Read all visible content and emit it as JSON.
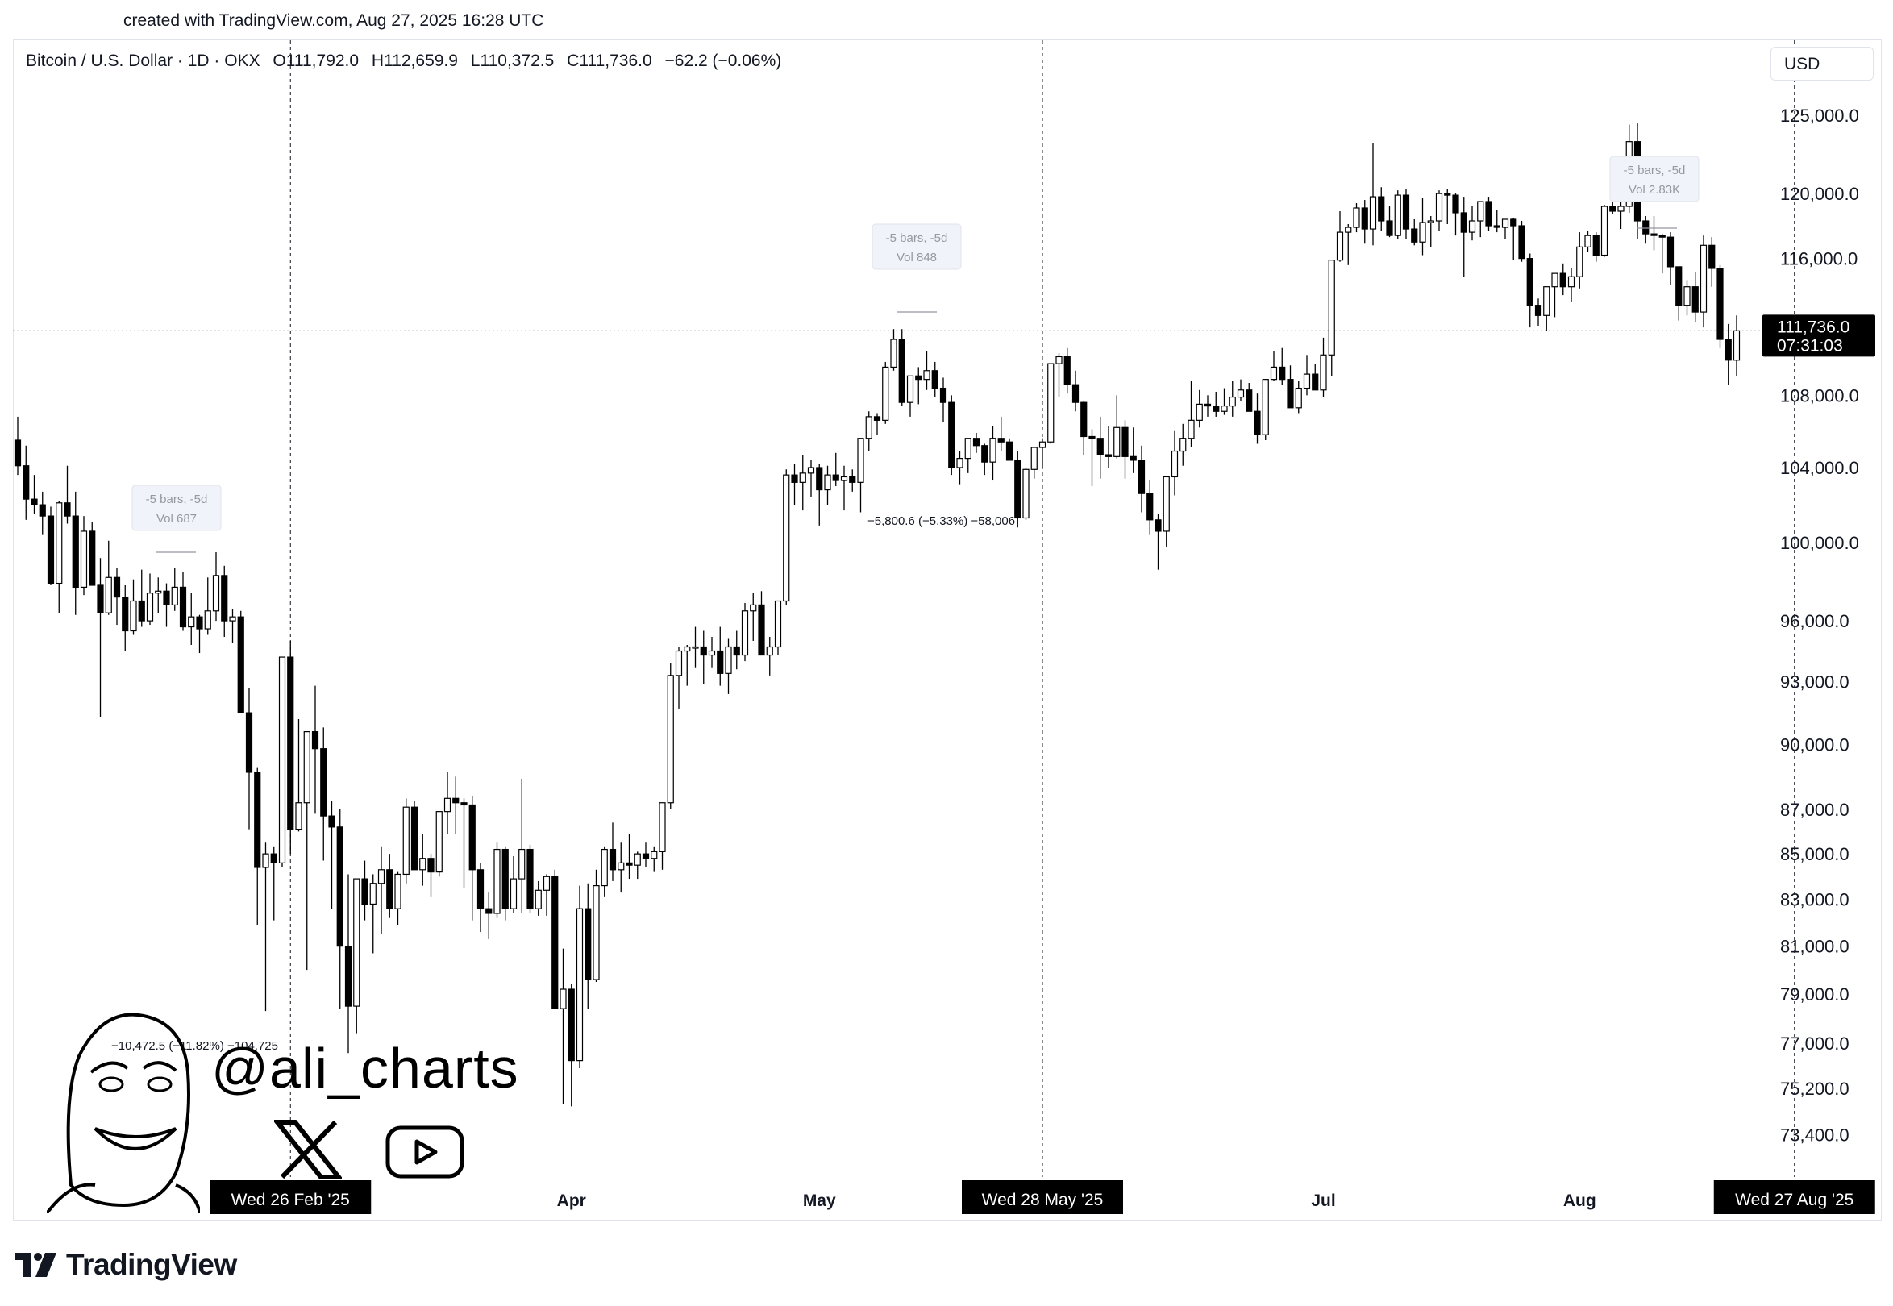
{
  "header": {
    "credit": "created with TradingView.com, Aug 27, 2025 16:28 UTC"
  },
  "legend": {
    "symbol": "Bitcoin / U.S. Dollar · 1D · OKX",
    "open": "O111,792.0",
    "high": "H112,659.9",
    "low": "L110,372.5",
    "close": "C111,736.0",
    "change": "−62.2 (−0.06%)"
  },
  "currency": "USD",
  "colors": {
    "up": "#ffffff",
    "down": "#000000",
    "outline": "#000000",
    "grid": "#e0e3eb",
    "label_bg": "#000000"
  },
  "chart_data": {
    "type": "candlestick",
    "symbol": "BTC/USD",
    "interval": "1D",
    "exchange": "OKX",
    "ylim": [
      71800,
      130000
    ],
    "price_axis_labels": [
      125000,
      120000,
      116000,
      108000,
      104000,
      100000,
      96000,
      93000,
      90000,
      87000,
      85000,
      83000,
      81000,
      79000,
      77000,
      75200,
      73400
    ],
    "price_axis_text": [
      "125,000.0",
      "120,000.0",
      "116,000.0",
      "108,000.0",
      "104,000.0",
      "100,000.0",
      "96,000.0",
      "93,000.0",
      "90,000.0",
      "87,000.0",
      "85,000.0",
      "83,000.0",
      "81,000.0",
      "79,000.0",
      "77,000.0",
      "75,200.0",
      "73,400.0"
    ],
    "time_axis_labels": [
      "Apr",
      "May",
      "Jul",
      "Aug"
    ],
    "time_axis_label_dates": [
      "2025-04-01",
      "2025-05-01",
      "2025-07-01",
      "2025-08-01"
    ],
    "date_range": [
      "2025-01-24",
      "2025-08-27"
    ],
    "current_price": "111,736.0",
    "countdown": "07:31:03",
    "highlighted_dates": [
      {
        "date": "2025-02-26",
        "label": "Wed 26 Feb '25"
      },
      {
        "date": "2025-05-28",
        "label": "Wed 28 May '25"
      },
      {
        "date": "2025-08-27",
        "label": "Wed 27 Aug '25"
      }
    ],
    "candles_ohlc": [
      [
        105500,
        106800,
        103600,
        104100
      ],
      [
        104100,
        105200,
        101200,
        102300
      ],
      [
        102300,
        103600,
        101500,
        102000
      ],
      [
        102000,
        102700,
        100400,
        101400
      ],
      [
        101400,
        101900,
        97800,
        97900
      ],
      [
        97900,
        102200,
        96400,
        102100
      ],
      [
        102100,
        104100,
        101000,
        101400
      ],
      [
        101400,
        102700,
        96300,
        97700
      ],
      [
        97700,
        101400,
        97300,
        100600
      ],
      [
        100600,
        101100,
        97900,
        97800
      ],
      [
        97800,
        99200,
        91300,
        96400
      ],
      [
        96400,
        100100,
        96300,
        98200
      ],
      [
        98200,
        98700,
        95800,
        97200
      ],
      [
        97200,
        97800,
        94500,
        95500
      ],
      [
        95500,
        98100,
        95300,
        97000
      ],
      [
        97000,
        98600,
        95700,
        96000
      ],
      [
        96000,
        98400,
        95800,
        97400
      ],
      [
        97400,
        98200,
        96400,
        97500
      ],
      [
        97500,
        97900,
        95700,
        96800
      ],
      [
        96800,
        98700,
        96500,
        97700
      ],
      [
        97700,
        98500,
        95500,
        95700
      ],
      [
        95700,
        97400,
        94800,
        96200
      ],
      [
        96200,
        96300,
        94400,
        95600
      ],
      [
        95600,
        98200,
        95300,
        96500
      ],
      [
        96500,
        99500,
        96000,
        98300
      ],
      [
        98300,
        98800,
        95200,
        96000
      ],
      [
        96000,
        96600,
        94900,
        96200
      ],
      [
        96200,
        96500,
        91500,
        91500
      ],
      [
        91500,
        92700,
        86100,
        88700
      ],
      [
        88700,
        88900,
        81900,
        84400
      ],
      [
        84400,
        85500,
        78300,
        85000
      ],
      [
        85000,
        85300,
        82100,
        84600
      ],
      [
        84600,
        92900,
        84400,
        94200
      ],
      [
        94200,
        95000,
        85000,
        86100
      ],
      [
        86100,
        91200,
        86000,
        87300
      ],
      [
        87300,
        90400,
        80000,
        90600
      ],
      [
        90600,
        92800,
        86800,
        89800
      ],
      [
        89800,
        90800,
        84700,
        86700
      ],
      [
        86700,
        87400,
        82600,
        86200
      ],
      [
        86200,
        87000,
        78400,
        81000
      ],
      [
        81000,
        84100,
        76600,
        78500
      ],
      [
        78500,
        83800,
        77400,
        83900
      ],
      [
        83900,
        84700,
        82100,
        82800
      ],
      [
        82800,
        84100,
        80700,
        83700
      ],
      [
        83700,
        85300,
        81500,
        84300
      ],
      [
        84300,
        85000,
        82200,
        82600
      ],
      [
        82600,
        84200,
        81900,
        84100
      ],
      [
        84100,
        87500,
        83700,
        87100
      ],
      [
        87100,
        87400,
        85200,
        84300
      ],
      [
        84300,
        85900,
        83600,
        84800
      ],
      [
        84800,
        85000,
        83100,
        84200
      ],
      [
        84200,
        85700,
        84000,
        86900
      ],
      [
        86900,
        88700,
        85900,
        87500
      ],
      [
        87500,
        88500,
        85900,
        87300
      ],
      [
        87300,
        87500,
        83500,
        87200
      ],
      [
        87200,
        87600,
        82100,
        84300
      ],
      [
        84300,
        84600,
        81600,
        82600
      ],
      [
        82600,
        83300,
        81300,
        82400
      ],
      [
        82400,
        85500,
        82200,
        85200
      ],
      [
        85200,
        85300,
        82100,
        82600
      ],
      [
        82600,
        84900,
        82400,
        83900
      ],
      [
        83900,
        88400,
        82400,
        85200
      ],
      [
        85200,
        85400,
        82400,
        82600
      ],
      [
        82600,
        83800,
        82300,
        83400
      ],
      [
        83400,
        84100,
        82300,
        84000
      ],
      [
        84000,
        84300,
        81300,
        78400
      ],
      [
        78400,
        80900,
        74600,
        79200
      ],
      [
        79200,
        79400,
        74500,
        76300
      ],
      [
        76300,
        83600,
        76000,
        82600
      ],
      [
        82600,
        83700,
        78400,
        79600
      ],
      [
        79600,
        84300,
        79500,
        83600
      ],
      [
        83600,
        85300,
        83100,
        85200
      ],
      [
        85200,
        86400,
        83800,
        84300
      ],
      [
        84300,
        85500,
        83300,
        84600
      ],
      [
        84600,
        85900,
        83900,
        84500
      ],
      [
        84500,
        85100,
        83900,
        85000
      ],
      [
        85000,
        85500,
        84400,
        84800
      ],
      [
        84800,
        85300,
        84200,
        85100
      ],
      [
        85100,
        86900,
        84300,
        87300
      ],
      [
        87300,
        93900,
        87000,
        93300
      ],
      [
        93300,
        94700,
        91700,
        94500
      ],
      [
        94500,
        94800,
        92800,
        94700
      ],
      [
        94700,
        95700,
        93700,
        94700
      ],
      [
        94700,
        95500,
        92900,
        94300
      ],
      [
        94300,
        95200,
        93700,
        94500
      ],
      [
        94500,
        95700,
        92800,
        93400
      ],
      [
        93400,
        95100,
        92400,
        94700
      ],
      [
        94700,
        95500,
        93600,
        94300
      ],
      [
        94300,
        96900,
        94000,
        96500
      ],
      [
        96500,
        97400,
        95000,
        96800
      ],
      [
        96800,
        97500,
        94300,
        94300
      ],
      [
        94300,
        95200,
        93300,
        94700
      ],
      [
        94700,
        96900,
        94300,
        97000
      ],
      [
        97000,
        103900,
        96800,
        103600
      ],
      [
        103600,
        104200,
        102000,
        103200
      ],
      [
        103200,
        104700,
        101700,
        103700
      ],
      [
        103700,
        104400,
        102400,
        104000
      ],
      [
        104000,
        104200,
        100900,
        102800
      ],
      [
        102800,
        104100,
        102000,
        103600
      ],
      [
        103600,
        104800,
        103000,
        103300
      ],
      [
        103300,
        104100,
        101700,
        103500
      ],
      [
        103500,
        103900,
        102700,
        103200
      ],
      [
        103200,
        105000,
        101600,
        105600
      ],
      [
        105600,
        107100,
        104900,
        106800
      ],
      [
        106800,
        107000,
        105800,
        106600
      ],
      [
        106600,
        109900,
        106400,
        109600
      ],
      [
        109600,
        111800,
        109400,
        111200
      ],
      [
        111200,
        111800,
        107400,
        107600
      ],
      [
        107600,
        108700,
        106800,
        109100
      ],
      [
        109100,
        109600,
        107500,
        108900
      ],
      [
        108900,
        110500,
        108300,
        109400
      ],
      [
        109400,
        109900,
        107900,
        108400
      ],
      [
        108400,
        109000,
        106500,
        107600
      ],
      [
        107600,
        108000,
        103600,
        104000
      ],
      [
        104000,
        104900,
        103100,
        104500
      ],
      [
        104500,
        105600,
        103700,
        105600
      ],
      [
        105600,
        105900,
        104800,
        105200
      ],
      [
        105200,
        105300,
        103600,
        104300
      ],
      [
        104300,
        106300,
        103300,
        105600
      ],
      [
        105600,
        106800,
        104900,
        105400
      ],
      [
        105400,
        105600,
        104900,
        104400
      ],
      [
        104400,
        104900,
        100800,
        101300
      ],
      [
        101300,
        104000,
        101200,
        103900
      ],
      [
        103900,
        105000,
        103400,
        105100
      ],
      [
        105100,
        105600,
        104000,
        105400
      ],
      [
        105400,
        106800,
        105300,
        109800
      ],
      [
        109800,
        110400,
        107900,
        110200
      ],
      [
        110200,
        110700,
        108100,
        108600
      ],
      [
        108600,
        109400,
        107100,
        107600
      ],
      [
        107600,
        107700,
        104700,
        105700
      ],
      [
        105700,
        106100,
        103000,
        105600
      ],
      [
        105600,
        106800,
        103400,
        104700
      ],
      [
        104700,
        106300,
        104000,
        104600
      ],
      [
        104600,
        108000,
        104500,
        106200
      ],
      [
        106200,
        106600,
        103400,
        104600
      ],
      [
        104600,
        106200,
        103700,
        104400
      ],
      [
        104400,
        105200,
        101600,
        102600
      ],
      [
        102600,
        103300,
        100400,
        101200
      ],
      [
        101200,
        101500,
        98600,
        100600
      ],
      [
        100600,
        103300,
        99800,
        103500
      ],
      [
        103500,
        106000,
        102500,
        104900
      ],
      [
        104900,
        106400,
        104100,
        105600
      ],
      [
        105600,
        108800,
        105100,
        106600
      ],
      [
        106600,
        108300,
        106200,
        107500
      ],
      [
        107500,
        108000,
        106800,
        107400
      ],
      [
        107400,
        108200,
        106800,
        107100
      ],
      [
        107100,
        108400,
        106900,
        107400
      ],
      [
        107400,
        108800,
        106800,
        107900
      ],
      [
        107900,
        108900,
        107700,
        108300
      ],
      [
        108300,
        108700,
        107600,
        107100
      ],
      [
        107100,
        108100,
        105300,
        105800
      ],
      [
        105800,
        108400,
        105500,
        108900
      ],
      [
        108900,
        110500,
        108800,
        109600
      ],
      [
        109600,
        110700,
        108600,
        108900
      ],
      [
        108900,
        109700,
        107300,
        107300
      ],
      [
        107300,
        108800,
        107000,
        108400
      ],
      [
        108400,
        110300,
        108000,
        109200
      ],
      [
        109200,
        109800,
        108600,
        108300
      ],
      [
        108300,
        111300,
        107900,
        110300
      ],
      [
        110300,
        112000,
        109100,
        115900
      ],
      [
        115900,
        118900,
        115800,
        117600
      ],
      [
        117600,
        118100,
        115600,
        117900
      ],
      [
        117900,
        119400,
        117600,
        119100
      ],
      [
        119100,
        119600,
        116900,
        117800
      ],
      [
        117800,
        123200,
        116800,
        119800
      ],
      [
        119800,
        120400,
        117700,
        118300
      ],
      [
        118300,
        119200,
        117300,
        117400
      ],
      [
        117400,
        120200,
        117200,
        119900
      ],
      [
        119900,
        120300,
        117200,
        117800
      ],
      [
        117800,
        118400,
        116800,
        117000
      ],
      [
        117000,
        119700,
        116200,
        118200
      ],
      [
        118200,
        118600,
        116700,
        118300
      ],
      [
        118300,
        120200,
        117700,
        120000
      ],
      [
        120000,
        120300,
        118100,
        119900
      ],
      [
        119900,
        120000,
        117400,
        118800
      ],
      [
        118800,
        119800,
        114900,
        117600
      ],
      [
        117600,
        119200,
        117100,
        118300
      ],
      [
        118300,
        119500,
        117300,
        119500
      ],
      [
        119500,
        119800,
        117700,
        118000
      ],
      [
        118000,
        119000,
        117600,
        117900
      ],
      [
        117900,
        118300,
        117200,
        118400
      ],
      [
        118400,
        118500,
        115900,
        118000
      ],
      [
        118000,
        118300,
        115800,
        116000
      ],
      [
        116000,
        116300,
        111900,
        113200
      ],
      [
        113200,
        113600,
        112000,
        112600
      ],
      [
        112600,
        113300,
        111700,
        114300
      ],
      [
        114300,
        115000,
        112500,
        115100
      ],
      [
        115100,
        115700,
        113800,
        114300
      ],
      [
        114300,
        115400,
        113400,
        114900
      ],
      [
        114900,
        117600,
        114200,
        116700
      ],
      [
        116700,
        117700,
        116400,
        117400
      ],
      [
        117400,
        117600,
        115800,
        116200
      ],
      [
        116200,
        119300,
        116100,
        119200
      ],
      [
        119200,
        121000,
        118700,
        118900
      ],
      [
        118900,
        120600,
        117800,
        119200
      ],
      [
        119200,
        124400,
        118800,
        123300
      ],
      [
        123300,
        124500,
        117200,
        118300
      ],
      [
        118300,
        118600,
        116900,
        117500
      ],
      [
        117500,
        118600,
        116500,
        117400
      ],
      [
        117400,
        117500,
        115100,
        117300
      ],
      [
        117300,
        117600,
        114400,
        115500
      ],
      [
        115500,
        115500,
        112300,
        113200
      ],
      [
        113200,
        114700,
        112600,
        114300
      ],
      [
        114300,
        115200,
        112200,
        112800
      ],
      [
        112800,
        117400,
        111900,
        116800
      ],
      [
        116800,
        117300,
        114300,
        115400
      ],
      [
        115400,
        115600,
        110700,
        111200
      ],
      [
        111200,
        112100,
        108600,
        110000
      ],
      [
        110000,
        112600,
        109100,
        111700
      ]
    ]
  },
  "annotations": {
    "measures": [
      {
        "title": "-5 bars, -5d",
        "vol": "Vol 687",
        "result": "−10,472.5 (−11.82%) −104,725"
      },
      {
        "title": "-5 bars, -5d",
        "vol": "Vol 848",
        "result": "−5,800.6 (−5.33%) −58,006"
      },
      {
        "title": "-5 bars, -5d",
        "vol": "Vol 2.83K"
      }
    ]
  },
  "watermark": {
    "handle": "@ali_charts"
  },
  "branding": {
    "logo_text": "TradingView"
  }
}
